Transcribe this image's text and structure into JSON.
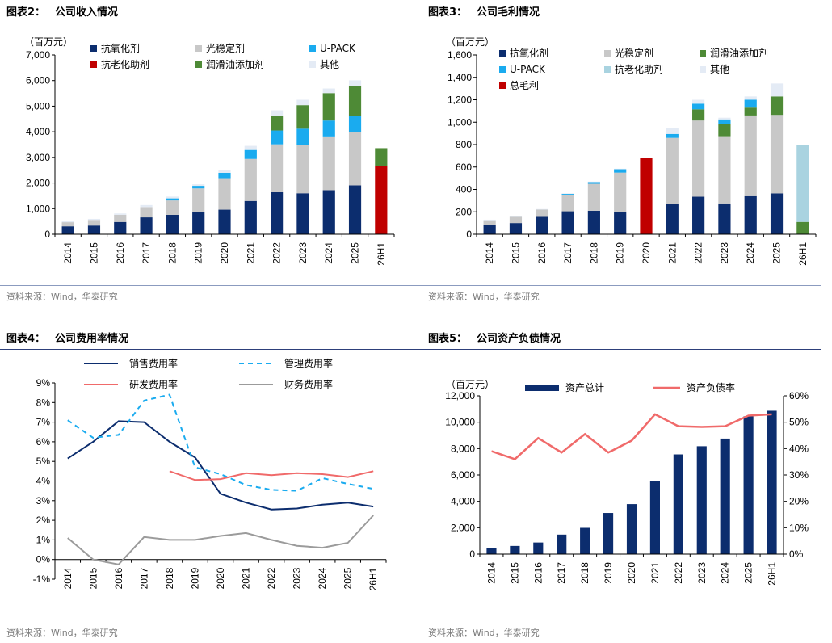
{
  "source_text": "资料来源：Wind，华泰研究",
  "charts": [
    {
      "title_prefix": "图表2：",
      "title_text": "公司收入情况",
      "chart_data": {
        "type": "bar",
        "stacked": true,
        "unit": "（百万元）",
        "categories": [
          "2014",
          "2015",
          "2016",
          "2017",
          "2018",
          "2019",
          "2020",
          "2021",
          "2022",
          "2023",
          "2024",
          "2025",
          "26H1"
        ],
        "ylim": [
          0,
          7000
        ],
        "yticks": [
          "0",
          "1,000",
          "2,000",
          "3,000",
          "4,000",
          "5,000",
          "6,000",
          "7,000"
        ],
        "grid": false,
        "legend_position": "top-left",
        "series": [
          {
            "name": "抗氧化剂",
            "color": "#0c2d6e",
            "values": [
              310,
              340,
              480,
              660,
              760,
              860,
              960,
              1300,
              1640,
              1600,
              1720,
              1910,
              0
            ]
          },
          {
            "name": "光稳定剂",
            "color": "#c8c8c8",
            "values": [
              160,
              220,
              280,
              400,
              560,
              930,
              1230,
              1640,
              1870,
              1880,
              2100,
              2090,
              0
            ]
          },
          {
            "name": "U-PACK",
            "color": "#1aabef",
            "values": [
              0,
              0,
              0,
              0,
              80,
              100,
              210,
              350,
              540,
              640,
              620,
              620,
              0
            ]
          },
          {
            "name": "抗老化助剂",
            "color": "#c00000",
            "values": [
              0,
              0,
              0,
              0,
              0,
              0,
              0,
              0,
              0,
              0,
              0,
              0,
              2650
            ]
          },
          {
            "name": "润滑油添加剂",
            "color": "#4e8a36",
            "values": [
              0,
              0,
              0,
              0,
              0,
              0,
              0,
              0,
              580,
              920,
              1070,
              1180,
              710
            ]
          },
          {
            "name": "其他",
            "color": "#e4ebf5",
            "values": [
              40,
              40,
              50,
              80,
              70,
              60,
              100,
              160,
              210,
              210,
              180,
              210,
              0
            ]
          }
        ]
      }
    },
    {
      "title_prefix": "图表3：",
      "title_text": "公司毛利情况",
      "chart_data": {
        "type": "bar",
        "stacked": true,
        "unit": "（百万元）",
        "categories": [
          "2014",
          "2015",
          "2016",
          "2017",
          "2018",
          "2019",
          "2020",
          "2021",
          "2022",
          "2023",
          "2024",
          "2025",
          "26H1"
        ],
        "ylim": [
          0,
          1600
        ],
        "yticks": [
          "0",
          "200",
          "400",
          "600",
          "800",
          "1,000",
          "1,200",
          "1,400",
          "1,600"
        ],
        "grid": false,
        "legend_position": "top-left",
        "series": [
          {
            "name": "抗氧化剂",
            "color": "#0c2d6e",
            "values": [
              85,
              100,
              155,
              205,
              210,
              195,
              0,
              270,
              335,
              275,
              340,
              365,
              0
            ]
          },
          {
            "name": "光稳定剂",
            "color": "#c8c8c8",
            "values": [
              40,
              55,
              65,
              145,
              240,
              355,
              0,
              590,
              680,
              600,
              720,
              700,
              0
            ]
          },
          {
            "name": "润滑油添加剂",
            "color": "#4e8a36",
            "values": [
              0,
              0,
              0,
              0,
              0,
              0,
              0,
              0,
              100,
              110,
              70,
              165,
              110
            ]
          },
          {
            "name": "U-PACK",
            "color": "#1aabef",
            "values": [
              0,
              0,
              0,
              10,
              15,
              30,
              0,
              35,
              50,
              40,
              70,
              0,
              0
            ]
          },
          {
            "name": "抗老化助剂",
            "color": "#a9d3e0",
            "values": [
              0,
              0,
              0,
              0,
              0,
              0,
              0,
              0,
              0,
              0,
              0,
              0,
              690
            ]
          },
          {
            "name": "其他",
            "color": "#e4ebf5",
            "values": [
              5,
              5,
              5,
              5,
              5,
              5,
              0,
              55,
              35,
              15,
              30,
              115,
              0
            ]
          },
          {
            "name": "总毛利",
            "color": "#c00000",
            "values": [
              0,
              0,
              0,
              0,
              0,
              0,
              680,
              0,
              0,
              0,
              0,
              0,
              0
            ]
          }
        ]
      }
    },
    {
      "title_prefix": "图表4：",
      "title_text": "公司费用率情况",
      "chart_data": {
        "type": "line",
        "categories": [
          "2014",
          "2015",
          "2016",
          "2017",
          "2018",
          "2019",
          "2020",
          "2021",
          "2022",
          "2023",
          "2024",
          "2025",
          "26H1"
        ],
        "ylim": [
          -1,
          9
        ],
        "yticks": [
          "-1%",
          "0%",
          "1%",
          "2%",
          "3%",
          "4%",
          "5%",
          "6%",
          "7%",
          "8%",
          "9%"
        ],
        "grid": false,
        "legend_position": "top",
        "series": [
          {
            "name": "销售费用率",
            "color": "#0c2d6e",
            "dash": "",
            "values": [
              5.15,
              6.0,
              7.05,
              7.0,
              6.0,
              5.2,
              3.35,
              2.9,
              2.55,
              2.6,
              2.8,
              2.9,
              2.7
            ]
          },
          {
            "name": "管理费用率",
            "color": "#1aabef",
            "dash": "6,5",
            "values": [
              7.1,
              6.2,
              6.35,
              8.1,
              8.4,
              4.7,
              4.35,
              3.8,
              3.55,
              3.5,
              4.15,
              3.85,
              3.6
            ]
          },
          {
            "name": "研发费用率",
            "color": "#f06a6a",
            "dash": "",
            "values": [
              null,
              null,
              null,
              null,
              4.5,
              4.05,
              4.1,
              4.4,
              4.3,
              4.4,
              4.35,
              4.2,
              4.5
            ]
          },
          {
            "name": "财务费用率",
            "color": "#9b9b9b",
            "dash": "",
            "values": [
              1.1,
              0.0,
              -0.25,
              1.15,
              1.0,
              1.0,
              1.2,
              1.35,
              1.0,
              0.7,
              0.6,
              0.85,
              2.25
            ]
          }
        ]
      }
    },
    {
      "title_prefix": "图表5：",
      "title_text": "公司资产负债情况",
      "chart_data": {
        "type": "bar",
        "unit": "（百万元）",
        "categories": [
          "2014",
          "2015",
          "2016",
          "2017",
          "2018",
          "2019",
          "2020",
          "2021",
          "2022",
          "2023",
          "2024",
          "2025",
          "26H1"
        ],
        "ylim": [
          0,
          12000
        ],
        "yticks": [
          "0",
          "2,000",
          "4,000",
          "6,000",
          "8,000",
          "10,000",
          "12,000"
        ],
        "y2lim": [
          0,
          60
        ],
        "y2ticks": [
          "0%",
          "10%",
          "20%",
          "30%",
          "40%",
          "50%",
          "60%"
        ],
        "grid": false,
        "legend_position": "top",
        "bar_series": {
          "name": "资产总计",
          "color": "#0c2d6e",
          "values": [
            480,
            620,
            880,
            1480,
            1990,
            3120,
            3790,
            5540,
            7560,
            8180,
            8760,
            10450,
            10870
          ]
        },
        "line_series": {
          "name": "资产负债率",
          "color": "#f06a6a",
          "values": [
            39,
            36,
            44,
            38.5,
            45.5,
            38.5,
            43,
            53,
            48.5,
            48.2,
            48.5,
            52.5,
            53
          ]
        }
      }
    }
  ]
}
